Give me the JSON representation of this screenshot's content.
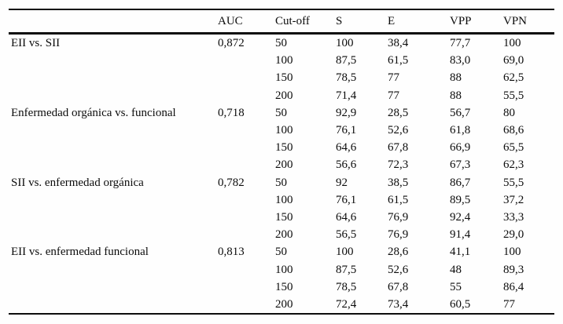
{
  "table": {
    "headers": {
      "label": "",
      "auc": "AUC",
      "cutoff": "Cut-off",
      "s": "S",
      "e": "E",
      "vpp": "VPP",
      "vpn": "VPN"
    },
    "groups": [
      {
        "label": "EII vs. SII",
        "auc": "0,872",
        "rows": [
          {
            "cutoff": "50",
            "s": "100",
            "e": "38,4",
            "vpp": "77,7",
            "vpn": "100"
          },
          {
            "cutoff": "100",
            "s": "87,5",
            "e": "61,5",
            "vpp": "83,0",
            "vpn": "69,0"
          },
          {
            "cutoff": "150",
            "s": "78,5",
            "e": "77",
            "vpp": "88",
            "vpn": "62,5"
          },
          {
            "cutoff": "200",
            "s": "71,4",
            "e": "77",
            "vpp": "88",
            "vpn": "55,5"
          }
        ]
      },
      {
        "label": "Enfermedad orgánica vs. funcional",
        "auc": "0,718",
        "rows": [
          {
            "cutoff": "50",
            "s": "92,9",
            "e": "28,5",
            "vpp": "56,7",
            "vpn": "80"
          },
          {
            "cutoff": "100",
            "s": "76,1",
            "e": "52,6",
            "vpp": "61,8",
            "vpn": "68,6"
          },
          {
            "cutoff": "150",
            "s": "64,6",
            "e": "67,8",
            "vpp": "66,9",
            "vpn": "65,5"
          },
          {
            "cutoff": "200",
            "s": "56,6",
            "e": "72,3",
            "vpp": "67,3",
            "vpn": "62,3"
          }
        ]
      },
      {
        "label": "SII vs. enfermedad orgánica",
        "auc": "0,782",
        "rows": [
          {
            "cutoff": "50",
            "s": "92",
            "e": "38,5",
            "vpp": "86,7",
            "vpn": "55,5"
          },
          {
            "cutoff": "100",
            "s": "76,1",
            "e": "61,5",
            "vpp": "89,5",
            "vpn": "37,2"
          },
          {
            "cutoff": "150",
            "s": "64,6",
            "e": "76,9",
            "vpp": "92,4",
            "vpn": "33,3"
          },
          {
            "cutoff": "200",
            "s": "56,5",
            "e": "76,9",
            "vpp": "91,4",
            "vpn": "29,0"
          }
        ]
      },
      {
        "label": "EII vs. enfermedad funcional",
        "auc": "0,813",
        "rows": [
          {
            "cutoff": "50",
            "s": "100",
            "e": "28,6",
            "vpp": "41,1",
            "vpn": "100"
          },
          {
            "cutoff": "100",
            "s": "87,5",
            "e": "52,6",
            "vpp": "48",
            "vpn": "89,3"
          },
          {
            "cutoff": "150",
            "s": "78,5",
            "e": "67,8",
            "vpp": "55",
            "vpn": "86,4"
          },
          {
            "cutoff": "200",
            "s": "72,4",
            "e": "73,4",
            "vpp": "60,5",
            "vpn": "77"
          }
        ]
      }
    ]
  },
  "colors": {
    "background": "#fefefe",
    "text": "#0c0c0c",
    "rule": "#0c0c0c"
  }
}
